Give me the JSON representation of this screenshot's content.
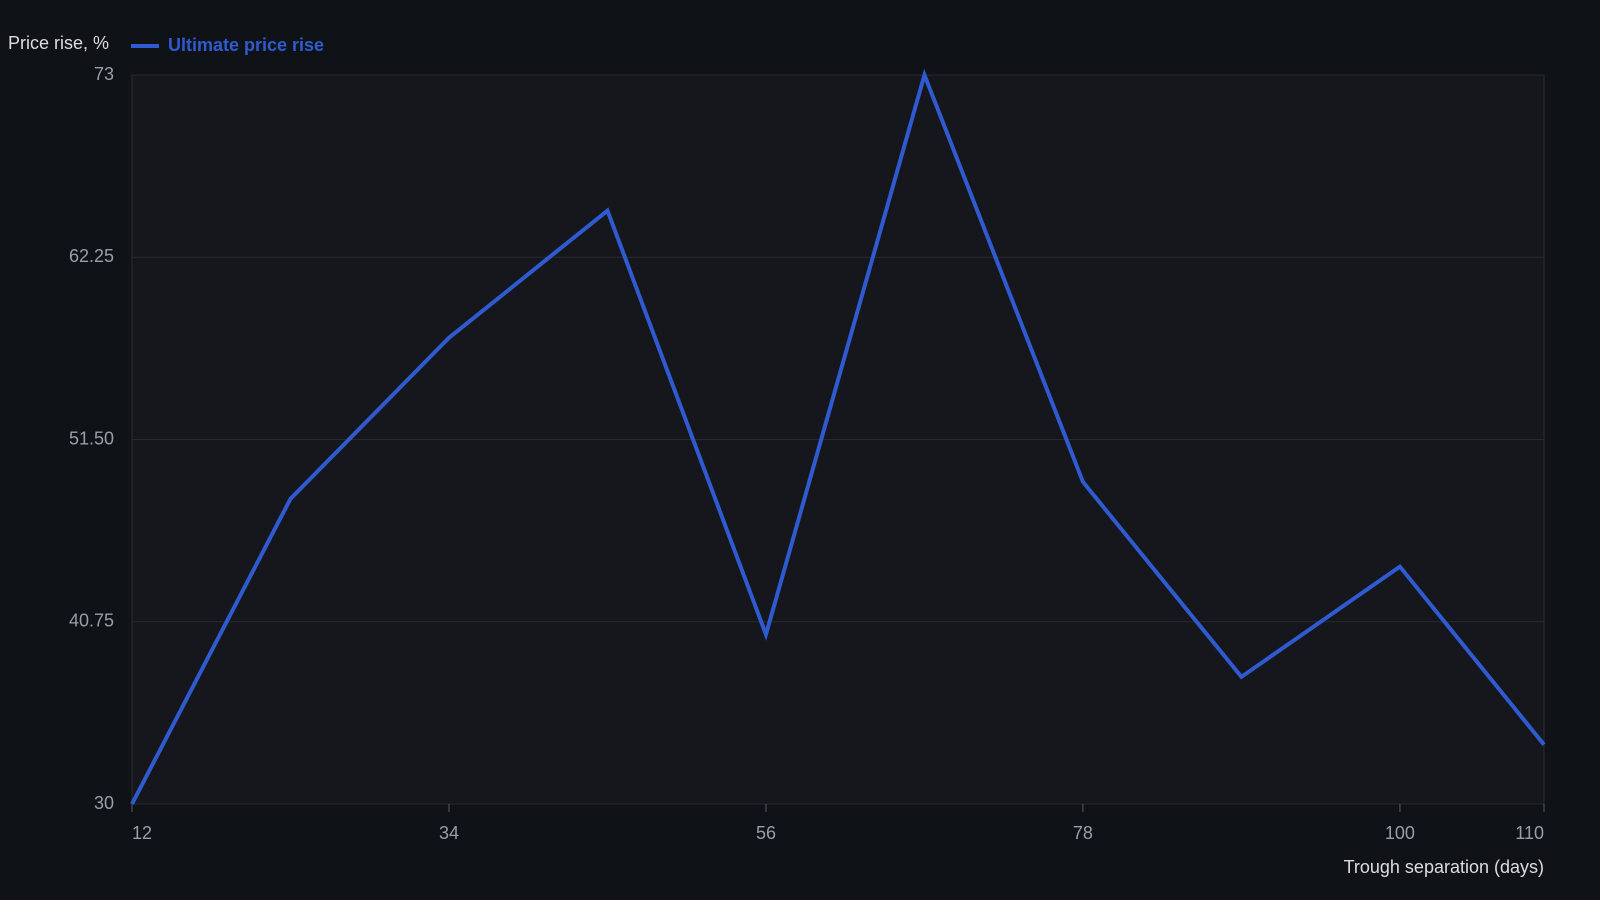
{
  "chart_data": {
    "type": "line",
    "y_label": "Price rise, %",
    "x_label": "Trough separation (days)",
    "x": [
      12,
      23,
      34,
      45,
      56,
      67,
      78,
      89,
      100,
      110
    ],
    "series": [
      {
        "name": "Ultimate price rise",
        "color": "#2f5ad0",
        "values": [
          30,
          48,
          57.5,
          65,
          40,
          73,
          49,
          37.5,
          44,
          33.5
        ]
      }
    ],
    "xlim": [
      12,
      110
    ],
    "xticks": [
      12,
      34,
      56,
      78,
      100,
      110
    ],
    "ylim": [
      30,
      73
    ],
    "yticks": [
      30,
      {
        "value": 40.75,
        "label": "40.75"
      },
      {
        "value": 51.5,
        "label": "51.50"
      },
      {
        "value": 62.25,
        "label": "62.25"
      },
      73
    ],
    "grid": true
  }
}
